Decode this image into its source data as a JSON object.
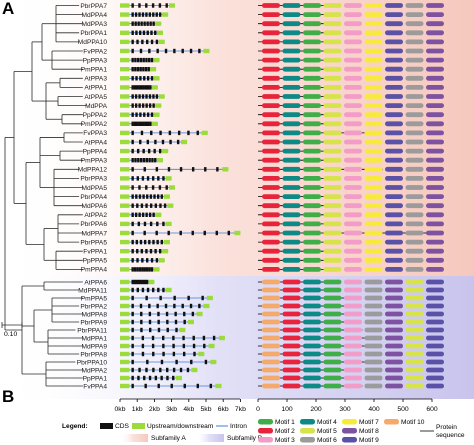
{
  "figure": {
    "panel_a": "A",
    "panel_b": "B",
    "scale_label": "0.10"
  },
  "subfamily_a_genes": [
    "PbrPPA7",
    "MdPPA4",
    "MdPPA3",
    "PbrPPA1",
    "MdPPA10",
    "FvPPA2",
    "PpPPA3",
    "PmPPA1",
    "AtPPA3",
    "AtPPA1",
    "AtPPA5",
    "MdPPA",
    "PpPPA2",
    "PmPPA2",
    "FvPPA3",
    "AtPPA4",
    "PpPPA4",
    "PmPPA3",
    "MdPPA12",
    "PbrPPA3",
    "MdPPA5",
    "PbrPPA4",
    "MdPPA6",
    "AtPPA2",
    "PbrPPA6",
    "MdPPA7",
    "PbrPPA5",
    "FvPPA1",
    "PpPPA5",
    "PmPPA4"
  ],
  "subfamily_b_genes": [
    "AtPPA6",
    "MdPPA11",
    "PmPPA5",
    "PbrPPA2",
    "MdPPA8",
    "PbrPPA9",
    "PbrPPA11",
    "MdPPA1",
    "MdPPA9",
    "PbrPPA8",
    "PbrPPA10",
    "MdPPA2",
    "PpPPA1",
    "FvPPA4"
  ],
  "gene_axis": {
    "ticks": [
      "0kb",
      "1kb",
      "2kb",
      "3kb",
      "4kb",
      "5kb",
      "6kb",
      "7kb"
    ]
  },
  "protein_axis": {
    "ticks": [
      "0",
      "100",
      "200",
      "300",
      "400",
      "500",
      "600"
    ]
  },
  "legend": {
    "title": "Legend:",
    "cds": "CDS",
    "utr": "Upstream/downstream",
    "intron": "Intron",
    "subfamily_a": "Subfamily A",
    "subfamily_b": "Subfamily B",
    "protein_line_1": "Protein",
    "protein_line_2": "sequence",
    "motifs": [
      {
        "label": "Motif 1",
        "color": "#3fae49"
      },
      {
        "label": "Motif 2",
        "color": "#e8243c"
      },
      {
        "label": "Motif 3",
        "color": "#f29cc7"
      },
      {
        "label": "Motif 4",
        "color": "#0d8a86"
      },
      {
        "label": "Motif 5",
        "color": "#d6e34a"
      },
      {
        "label": "Motif 6",
        "color": "#9b9b9b"
      },
      {
        "label": "Motif 7",
        "color": "#f7ea3d"
      },
      {
        "label": "Motif 8",
        "color": "#7d52a0"
      },
      {
        "label": "Motif 9",
        "color": "#5a52a6"
      },
      {
        "label": "Motif 10",
        "color": "#f5a96b"
      }
    ]
  },
  "colors": {
    "subfamily_a_bg": "#f6c8bd",
    "subfamily_b_bg": "#c8c4ec",
    "utr": "#9bdc3c",
    "cds": "#111111",
    "intron": "#3f7dd6"
  }
}
